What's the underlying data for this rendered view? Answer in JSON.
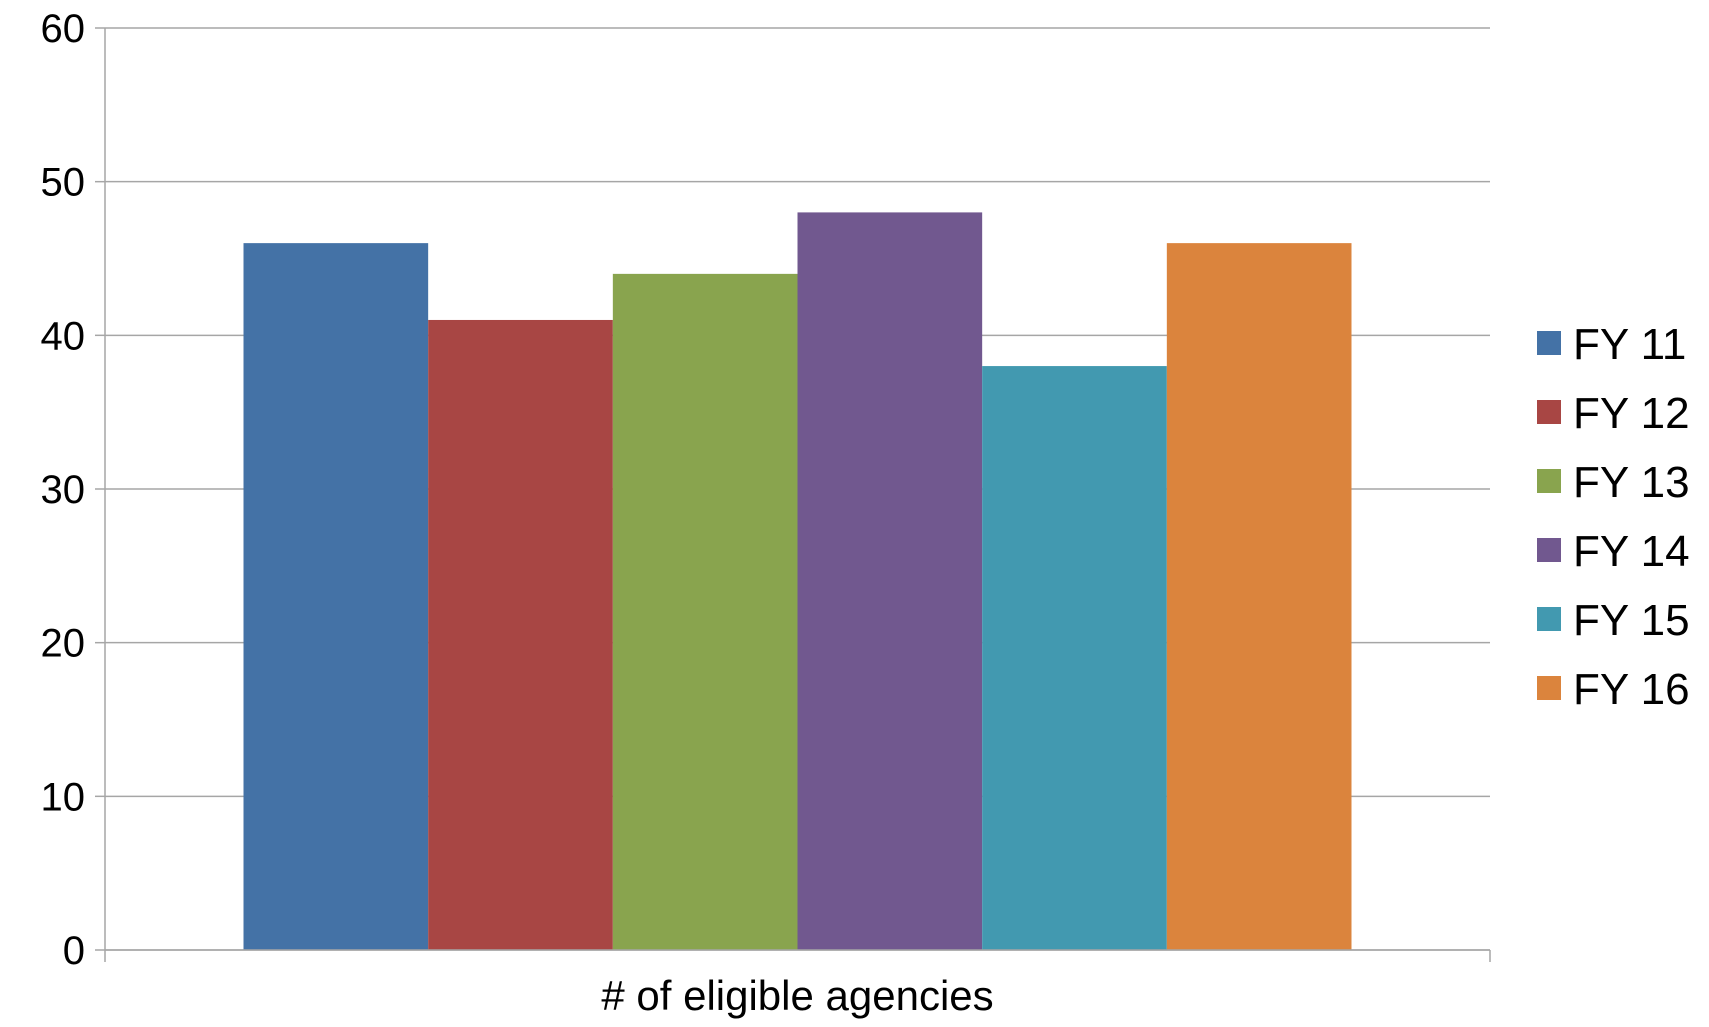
{
  "chart_data": {
    "type": "bar",
    "title": "",
    "xlabel": "",
    "ylabel": "",
    "categories": [
      "# of eligible agencies"
    ],
    "series": [
      {
        "name": "FY 11",
        "values": [
          46
        ],
        "color": "#4472A6"
      },
      {
        "name": "FY 12",
        "values": [
          41
        ],
        "color": "#A84644"
      },
      {
        "name": "FY 13",
        "values": [
          44
        ],
        "color": "#89A44E"
      },
      {
        "name": "FY 14",
        "values": [
          48
        ],
        "color": "#71588F"
      },
      {
        "name": "FY 15",
        "values": [
          38
        ],
        "color": "#4299B0"
      },
      {
        "name": "FY 16",
        "values": [
          46
        ],
        "color": "#DB843D"
      }
    ],
    "ylim": [
      0,
      60
    ],
    "yticks": [
      0,
      10,
      20,
      30,
      40,
      50,
      60
    ],
    "grid": true,
    "legend": "right",
    "colors": {
      "gridline": "#A6A6A6",
      "axis": "#A6A6A6",
      "text": "#000000"
    }
  }
}
